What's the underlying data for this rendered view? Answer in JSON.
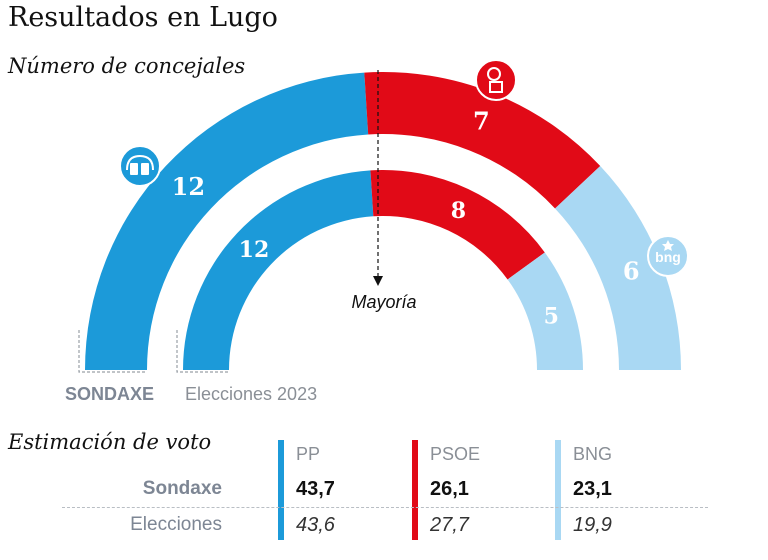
{
  "title": "Resultados en Lugo",
  "subtitle": "Número de concejales",
  "chart_data": {
    "type": "hemicycle",
    "unit": "concejales",
    "majority_label": "Mayoría",
    "total_seats": 25,
    "parties": [
      {
        "name": "PP",
        "color": "#1c9ad9",
        "logo_icon": "pp-logo-icon"
      },
      {
        "name": "PSOE",
        "color": "#e10a17",
        "logo_icon": "psoe-logo-icon"
      },
      {
        "name": "BNG",
        "color": "#a9d8f3",
        "logo_icon": "bng-logo-icon",
        "logo_text": "bng"
      }
    ],
    "rings": [
      {
        "label": "SONDAXE",
        "seats": [
          12,
          7,
          6
        ]
      },
      {
        "label": "Elecciones 2023",
        "seats": [
          12,
          8,
          5
        ]
      }
    ]
  },
  "vote_estimate": {
    "title": "Estimación de voto",
    "columns": [
      "PP",
      "PSOE",
      "BNG"
    ],
    "colors": [
      "#1c9ad9",
      "#e10a17",
      "#a9d8f3"
    ],
    "rows": [
      {
        "label": "Sondaxe",
        "values": [
          "43,7",
          "26,1",
          "23,1"
        ]
      },
      {
        "label": "Elecciones",
        "values": [
          "43,6",
          "27,7",
          "19,9"
        ]
      }
    ]
  }
}
